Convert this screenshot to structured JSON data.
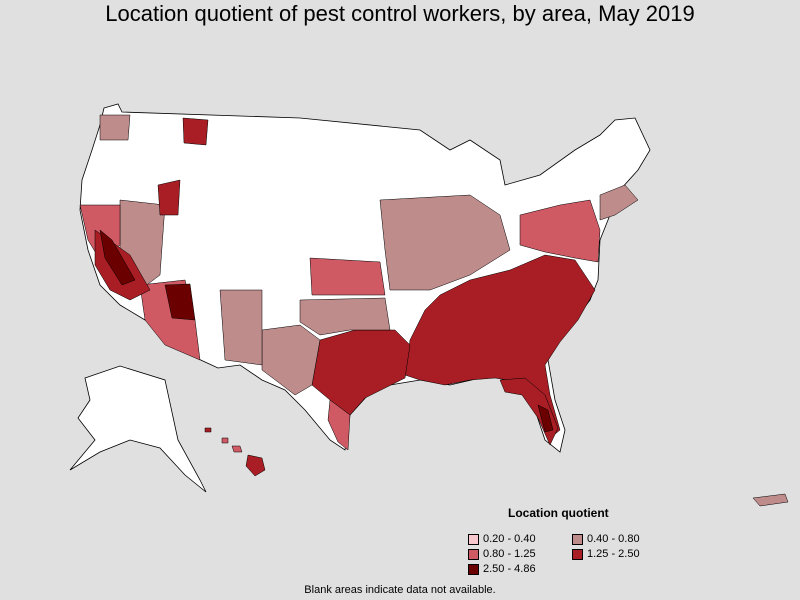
{
  "title": "Location quotient of pest control workers, by area, May 2019",
  "legend": {
    "title": "Location quotient",
    "items": [
      {
        "label": "0.20 - 0.40",
        "color": "#f9c8cf"
      },
      {
        "label": "0.40 - 0.80",
        "color": "#bf8c8c"
      },
      {
        "label": "0.80 - 1.25",
        "color": "#cf5a64"
      },
      {
        "label": "1.25 - 2.50",
        "color": "#a81e24"
      },
      {
        "label": "2.50 - 4.86",
        "color": "#6b0000"
      }
    ]
  },
  "note": "Blank areas indicate data not available.",
  "colors": {
    "background": "#e0e0e0",
    "no_data": "#ffffff",
    "border": "#000000"
  }
}
